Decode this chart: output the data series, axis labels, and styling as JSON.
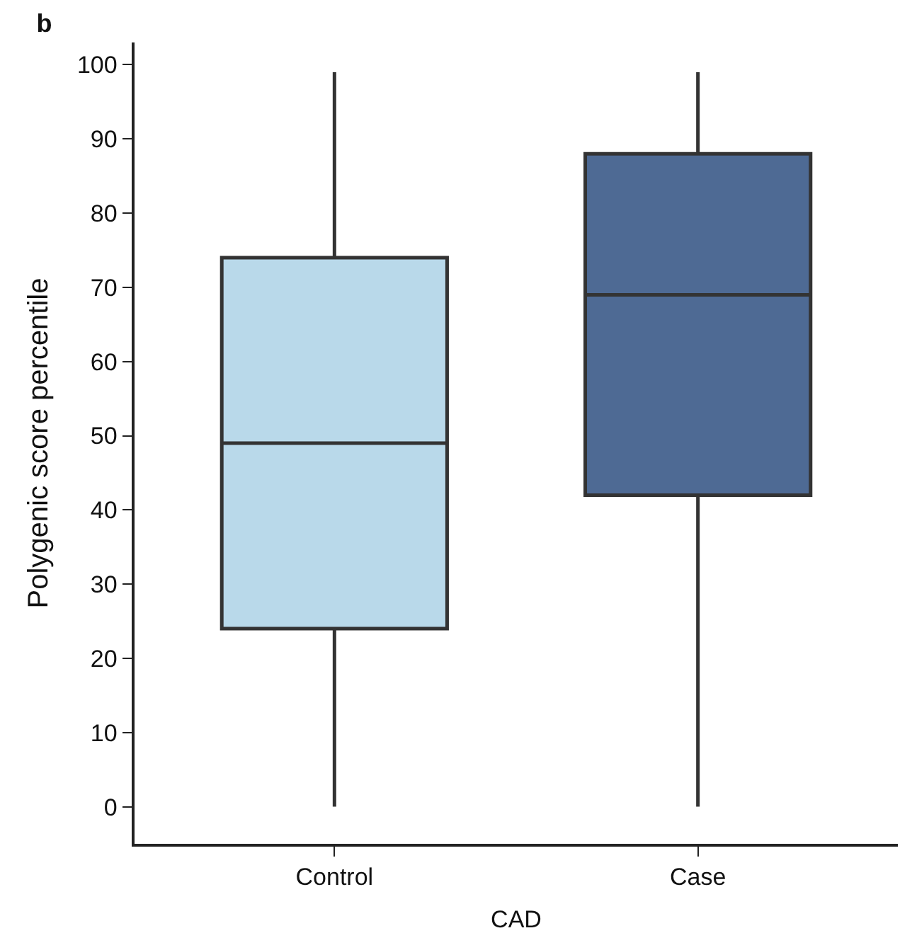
{
  "chart_data": {
    "type": "box",
    "title": "b",
    "xlabel": "CAD",
    "ylabel": "Polygenic score percentile",
    "categories": [
      "Control",
      "Case"
    ],
    "colors": [
      "#b9d9ea",
      "#4e6a94"
    ],
    "boxes": [
      {
        "low": 0,
        "q1": 24,
        "median": 49,
        "q3": 74,
        "high": 99
      },
      {
        "low": 0,
        "q1": 42,
        "median": 69,
        "q3": 88,
        "high": 99
      }
    ],
    "ylim": [
      -5,
      103
    ],
    "yticks": [
      0,
      10,
      20,
      30,
      40,
      50,
      60,
      70,
      80,
      90,
      100
    ]
  }
}
